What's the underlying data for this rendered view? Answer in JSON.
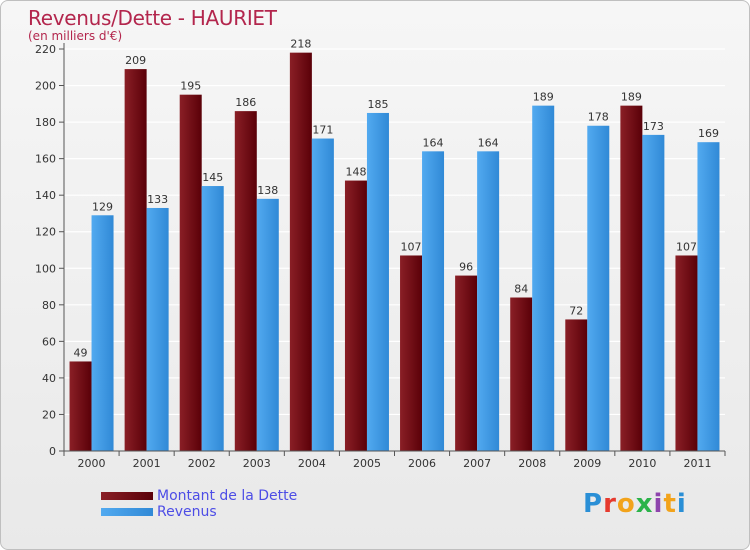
{
  "header": {
    "title": "Revenus/Dette - HAURIET",
    "subtitle": "(en milliers d'€)"
  },
  "logo": {
    "text": "Proxiti",
    "colors": [
      "#2a8fd6",
      "#e63a2e",
      "#f2a31b",
      "#2bb34a",
      "#8e44ad",
      "#f2a31b",
      "#2a8fd6"
    ]
  },
  "colors": {
    "dette": "#6b0a12",
    "revenus": "#3f9de6",
    "axis": "#555555",
    "grid": "#ffffff"
  },
  "chart_data": {
    "type": "bar",
    "title": "Revenus/Dette - HAURIET",
    "subtitle": "(en milliers d'€)",
    "categories": [
      "2000",
      "2001",
      "2002",
      "2003",
      "2004",
      "2005",
      "2006",
      "2007",
      "2008",
      "2009",
      "2010",
      "2011"
    ],
    "series": [
      {
        "name": "Montant de la Dette",
        "values": [
          49,
          209,
          195,
          186,
          218,
          148,
          107,
          96,
          84,
          72,
          189,
          107
        ]
      },
      {
        "name": "Revenus",
        "values": [
          129,
          133,
          145,
          138,
          171,
          185,
          164,
          164,
          189,
          178,
          173,
          169
        ]
      }
    ],
    "yticks": [
      "0",
      "20",
      "40",
      "60",
      "80",
      "100",
      "120",
      "140",
      "160",
      "180",
      "200",
      "220"
    ],
    "ylim": [
      0,
      220
    ],
    "grid": true,
    "legend": "bottom-left"
  }
}
